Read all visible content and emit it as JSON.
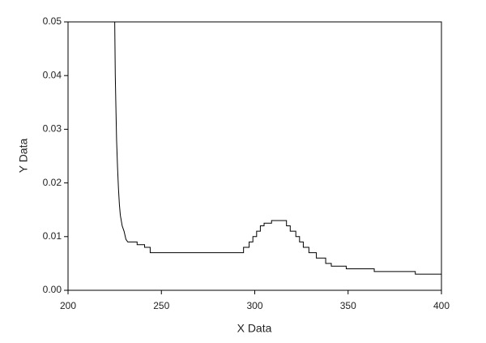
{
  "chart_data": {
    "type": "line",
    "x_label": "X Data",
    "y_label": "Y Data",
    "x": [
      225,
      225.3,
      225.7,
      226,
      226.5,
      227,
      227.5,
      228,
      229,
      230,
      231,
      232,
      237,
      237,
      241,
      241,
      244,
      244,
      294,
      294,
      297,
      297,
      299,
      299,
      301,
      301,
      303,
      303,
      305,
      305,
      309,
      309,
      317,
      317,
      319,
      319,
      322,
      322,
      324,
      324,
      326,
      326,
      329,
      329,
      333,
      333,
      338,
      338,
      341,
      341,
      349,
      349,
      364,
      364,
      386,
      386,
      400
    ],
    "y": [
      0.05,
      0.04,
      0.033,
      0.028,
      0.023,
      0.019,
      0.016,
      0.014,
      0.012,
      0.011,
      0.0095,
      0.009,
      0.009,
      0.0085,
      0.0085,
      0.008,
      0.008,
      0.007,
      0.007,
      0.008,
      0.008,
      0.009,
      0.009,
      0.01,
      0.01,
      0.011,
      0.011,
      0.012,
      0.012,
      0.0125,
      0.0125,
      0.013,
      0.013,
      0.012,
      0.012,
      0.011,
      0.011,
      0.01,
      0.01,
      0.009,
      0.009,
      0.008,
      0.008,
      0.007,
      0.007,
      0.006,
      0.006,
      0.005,
      0.005,
      0.0045,
      0.0045,
      0.004,
      0.004,
      0.0035,
      0.0035,
      0.003,
      0.003
    ],
    "color": "#000000",
    "xlim": [
      200,
      400
    ],
    "xticks": [
      200,
      250,
      300,
      350,
      400
    ],
    "ylim": [
      0,
      0.05
    ],
    "yticks": [
      {
        "value": 0,
        "label": "0.00"
      },
      0.01,
      0.02,
      0.03,
      0.04,
      0.05
    ]
  }
}
